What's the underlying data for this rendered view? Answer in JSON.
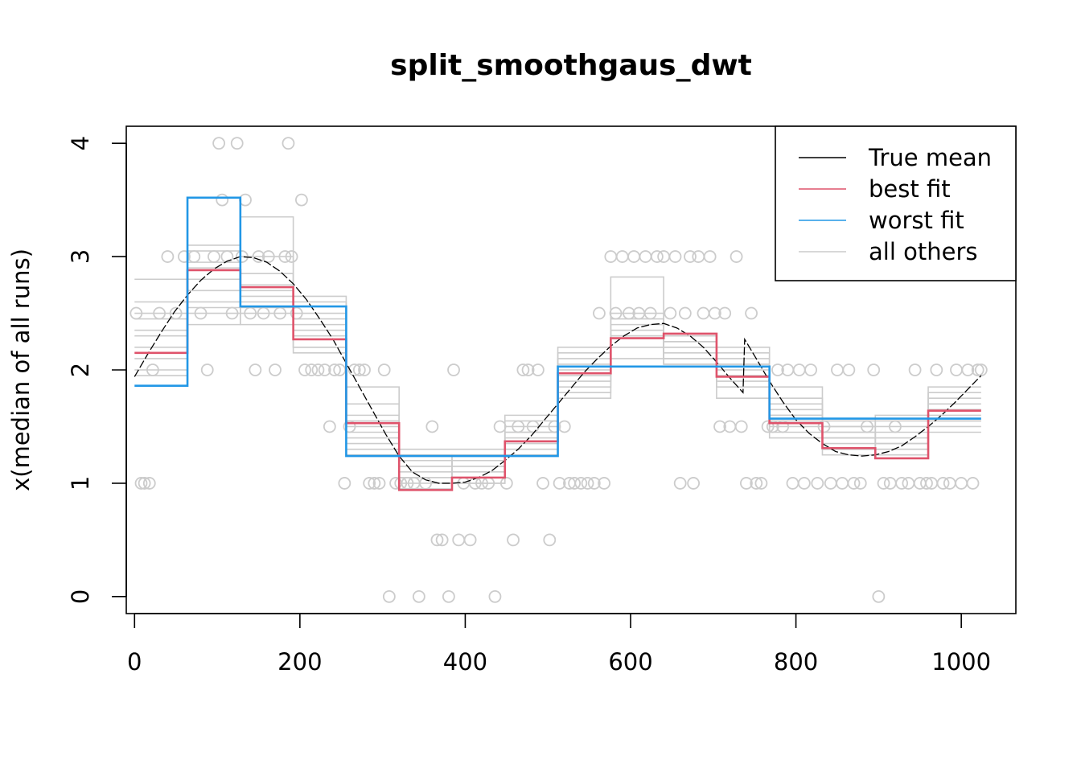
{
  "chart_data": {
    "type": "line",
    "title": "split_smoothgaus_dwt",
    "xlabel": "",
    "ylabel": "x(median of all runs)",
    "xlim": [
      -10,
      1066
    ],
    "ylim": [
      -0.15,
      4.15
    ],
    "x_ticks": [
      0,
      200,
      400,
      600,
      800,
      1000
    ],
    "x_tick_labels": [
      "0",
      "200",
      "400",
      "600",
      "800",
      "1000"
    ],
    "y_ticks": [
      0,
      1,
      2,
      3,
      4
    ],
    "y_tick_labels": [
      "0",
      "1",
      "2",
      "3",
      "4"
    ],
    "grid": false,
    "legend_position": "top-right",
    "legend": [
      "True mean",
      "best fit",
      "worst fit",
      "all others"
    ],
    "colors": {
      "true_mean": "#000000",
      "best_fit": "#DF536B",
      "worst_fit": "#2297E6",
      "others": "#CCCCCC",
      "points": "#CCCCCC"
    },
    "segment_breaks": [
      0,
      64,
      128,
      192,
      256,
      320,
      384,
      448,
      512,
      576,
      640,
      704,
      768,
      832,
      896,
      960,
      1024
    ],
    "series": [
      {
        "name": "best fit",
        "type": "step",
        "values": [
          2.15,
          2.88,
          2.73,
          2.27,
          1.53,
          0.94,
          1.05,
          1.37,
          1.97,
          2.28,
          2.32,
          1.94,
          1.53,
          1.31,
          1.22,
          1.64
        ]
      },
      {
        "name": "worst fit",
        "type": "step",
        "breaks": [
          0,
          64,
          128,
          256,
          512,
          768,
          1024
        ],
        "values": [
          1.86,
          3.52,
          2.56,
          1.24,
          2.03,
          1.57
        ]
      },
      {
        "name": "all others",
        "type": "step-band",
        "samples": [
          [
            1.95,
            2.8,
            2.6,
            2.15,
            1.35,
            1.05,
            1.0,
            1.3,
            1.85,
            2.2,
            2.15,
            1.95,
            1.45,
            1.4,
            1.3,
            1.5
          ],
          [
            2.45,
            2.95,
            2.85,
            2.35,
            1.6,
            1.1,
            1.15,
            1.5,
            2.1,
            2.4,
            2.25,
            2.05,
            1.6,
            1.5,
            1.45,
            1.7
          ],
          [
            2.2,
            2.55,
            2.7,
            2.5,
            1.25,
            1.2,
            1.05,
            1.4,
            2.0,
            2.3,
            2.05,
            2.1,
            1.55,
            1.3,
            1.35,
            1.55
          ],
          [
            2.35,
            3.05,
            2.5,
            2.3,
            1.45,
            1.15,
            1.25,
            1.25,
            1.95,
            2.1,
            2.2,
            1.9,
            1.65,
            1.45,
            1.25,
            1.6
          ],
          [
            2.6,
            2.4,
            3.0,
            2.2,
            1.3,
            0.95,
            1.1,
            1.45,
            1.75,
            2.35,
            2.1,
            2.0,
            1.5,
            1.55,
            1.4,
            1.65
          ],
          [
            2.8,
            2.7,
            2.4,
            2.6,
            1.7,
            1.0,
            1.2,
            1.6,
            2.15,
            2.5,
            2.3,
            2.15,
            1.7,
            1.35,
            1.5,
            1.45
          ],
          [
            2.1,
            2.6,
            2.65,
            2.4,
            1.5,
            1.3,
            1.3,
            1.35,
            1.9,
            2.45,
            2.05,
            1.85,
            1.4,
            1.5,
            1.55,
            1.75
          ],
          [
            2.3,
            3.1,
            2.75,
            2.45,
            1.4,
            1.05,
            1.0,
            1.55,
            2.05,
            2.2,
            2.25,
            2.2,
            1.75,
            1.4,
            1.3,
            1.8
          ],
          [
            2.0,
            2.5,
            3.35,
            2.2,
            1.85,
            1.25,
            1.15,
            1.3,
            2.2,
            2.82,
            2.1,
            1.75,
            1.6,
            1.25,
            1.6,
            1.55
          ],
          [
            2.5,
            2.9,
            2.55,
            2.65,
            1.55,
            1.15,
            1.2,
            1.45,
            1.8,
            2.3,
            2.2,
            2.05,
            1.85,
            1.45,
            1.35,
            1.85
          ]
        ]
      },
      {
        "name": "True mean",
        "type": "line",
        "x": [
          0,
          16,
          32,
          48,
          64,
          80,
          96,
          112,
          128,
          144,
          160,
          176,
          192,
          208,
          224,
          240,
          256,
          272,
          288,
          304,
          320,
          336,
          352,
          368,
          384,
          400,
          416,
          432,
          448,
          464,
          480,
          496,
          512,
          528,
          544,
          560,
          576,
          592,
          608,
          624,
          640,
          656,
          672,
          688,
          704,
          720,
          736,
          738,
          752,
          768,
          784,
          800,
          816,
          832,
          848,
          864,
          880,
          896,
          912,
          928,
          944,
          960,
          976,
          992,
          1008,
          1024
        ],
        "y": [
          1.94,
          2.14,
          2.33,
          2.51,
          2.66,
          2.79,
          2.89,
          2.96,
          3.0,
          2.99,
          2.95,
          2.87,
          2.76,
          2.62,
          2.45,
          2.27,
          2.06,
          1.85,
          1.64,
          1.43,
          1.24,
          1.1,
          1.03,
          1.0,
          1.0,
          1.01,
          1.05,
          1.11,
          1.2,
          1.3,
          1.42,
          1.56,
          1.7,
          1.84,
          1.98,
          2.1,
          2.21,
          2.3,
          2.37,
          2.4,
          2.41,
          2.37,
          2.3,
          2.2,
          2.07,
          1.93,
          1.8,
          2.27,
          2.1,
          1.9,
          1.72,
          1.56,
          1.44,
          1.35,
          1.28,
          1.25,
          1.24,
          1.25,
          1.28,
          1.33,
          1.41,
          1.5,
          1.6,
          1.71,
          1.83,
          1.95
        ]
      },
      {
        "name": "data points",
        "type": "scatter",
        "points": [
          [
            2,
            2.5
          ],
          [
            8,
            1
          ],
          [
            12,
            1
          ],
          [
            18,
            1
          ],
          [
            22,
            2
          ],
          [
            30,
            2.5
          ],
          [
            40,
            3
          ],
          [
            50,
            2.5
          ],
          [
            60,
            3
          ],
          [
            72,
            3
          ],
          [
            80,
            2.5
          ],
          [
            88,
            2
          ],
          [
            96,
            3
          ],
          [
            102,
            4
          ],
          [
            106,
            3.5
          ],
          [
            112,
            3
          ],
          [
            118,
            2.5
          ],
          [
            124,
            4
          ],
          [
            130,
            3
          ],
          [
            134,
            3.5
          ],
          [
            140,
            2.5
          ],
          [
            146,
            2
          ],
          [
            150,
            3
          ],
          [
            156,
            2.5
          ],
          [
            162,
            3
          ],
          [
            170,
            2
          ],
          [
            176,
            2.5
          ],
          [
            182,
            3
          ],
          [
            186,
            4
          ],
          [
            190,
            3
          ],
          [
            196,
            2.5
          ],
          [
            202,
            3.5
          ],
          [
            206,
            2
          ],
          [
            214,
            2
          ],
          [
            222,
            2
          ],
          [
            230,
            2
          ],
          [
            236,
            1.5
          ],
          [
            242,
            2
          ],
          [
            248,
            2
          ],
          [
            254,
            1
          ],
          [
            260,
            1.5
          ],
          [
            266,
            2
          ],
          [
            272,
            2
          ],
          [
            278,
            2
          ],
          [
            284,
            1
          ],
          [
            290,
            1
          ],
          [
            296,
            1
          ],
          [
            302,
            2
          ],
          [
            308,
            0
          ],
          [
            316,
            1
          ],
          [
            322,
            1
          ],
          [
            330,
            1
          ],
          [
            338,
            1
          ],
          [
            344,
            0
          ],
          [
            352,
            1
          ],
          [
            360,
            1.5
          ],
          [
            366,
            0.5
          ],
          [
            372,
            0.5
          ],
          [
            380,
            0
          ],
          [
            386,
            2
          ],
          [
            392,
            0.5
          ],
          [
            398,
            1
          ],
          [
            406,
            0.5
          ],
          [
            412,
            1
          ],
          [
            420,
            1
          ],
          [
            428,
            1
          ],
          [
            436,
            0
          ],
          [
            442,
            1.5
          ],
          [
            450,
            1
          ],
          [
            458,
            0.5
          ],
          [
            464,
            1.5
          ],
          [
            470,
            2
          ],
          [
            476,
            2
          ],
          [
            482,
            1.5
          ],
          [
            488,
            2
          ],
          [
            494,
            1
          ],
          [
            502,
            0.5
          ],
          [
            508,
            1.5
          ],
          [
            514,
            1
          ],
          [
            520,
            1.5
          ],
          [
            526,
            1
          ],
          [
            532,
            1
          ],
          [
            540,
            1
          ],
          [
            548,
            1
          ],
          [
            556,
            1
          ],
          [
            562,
            2.5
          ],
          [
            568,
            1
          ],
          [
            576,
            3
          ],
          [
            582,
            2.5
          ],
          [
            590,
            3
          ],
          [
            598,
            2.5
          ],
          [
            604,
            3
          ],
          [
            610,
            2.5
          ],
          [
            618,
            3
          ],
          [
            624,
            2.5
          ],
          [
            632,
            3
          ],
          [
            640,
            3
          ],
          [
            648,
            2.5
          ],
          [
            654,
            3
          ],
          [
            660,
            1
          ],
          [
            666,
            2.5
          ],
          [
            672,
            3
          ],
          [
            676,
            1
          ],
          [
            682,
            3
          ],
          [
            688,
            2.5
          ],
          [
            696,
            3
          ],
          [
            702,
            2.5
          ],
          [
            708,
            1.5
          ],
          [
            714,
            2.5
          ],
          [
            720,
            1.5
          ],
          [
            728,
            3
          ],
          [
            734,
            1.5
          ],
          [
            740,
            1
          ],
          [
            746,
            2.5
          ],
          [
            752,
            1
          ],
          [
            758,
            1
          ],
          [
            766,
            1.5
          ],
          [
            772,
            1.5
          ],
          [
            778,
            2
          ],
          [
            784,
            1.5
          ],
          [
            790,
            2
          ],
          [
            796,
            1
          ],
          [
            804,
            2
          ],
          [
            810,
            1
          ],
          [
            818,
            2
          ],
          [
            826,
            1
          ],
          [
            834,
            1.5
          ],
          [
            842,
            1
          ],
          [
            850,
            2
          ],
          [
            856,
            1
          ],
          [
            864,
            2
          ],
          [
            870,
            1
          ],
          [
            878,
            1
          ],
          [
            886,
            1.5
          ],
          [
            894,
            2
          ],
          [
            900,
            0
          ],
          [
            906,
            1
          ],
          [
            914,
            1
          ],
          [
            920,
            1.5
          ],
          [
            928,
            1
          ],
          [
            936,
            1
          ],
          [
            944,
            2
          ],
          [
            950,
            1
          ],
          [
            958,
            1
          ],
          [
            964,
            1
          ],
          [
            970,
            2
          ],
          [
            978,
            1
          ],
          [
            986,
            1
          ],
          [
            994,
            2
          ],
          [
            1000,
            1
          ],
          [
            1008,
            2
          ],
          [
            1014,
            1
          ],
          [
            1020,
            2
          ],
          [
            1024,
            2
          ]
        ]
      }
    ]
  }
}
